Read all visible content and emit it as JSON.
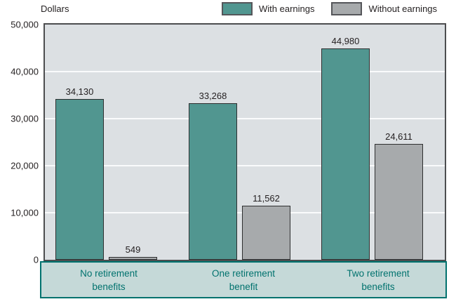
{
  "chart_data": {
    "type": "bar",
    "title": "",
    "ylabel": "Dollars",
    "xlabel": "",
    "ylim": [
      0,
      50000
    ],
    "grid": true,
    "legend_position": "top-right",
    "yticks": [
      {
        "value": 50000,
        "label": "50,000"
      },
      {
        "value": 40000,
        "label": "40,000"
      },
      {
        "value": 30000,
        "label": "30,000"
      },
      {
        "value": 20000,
        "label": "20,000"
      },
      {
        "value": 10000,
        "label": "10,000"
      },
      {
        "value": 0,
        "label": "0"
      }
    ],
    "categories": [
      {
        "lines": [
          "No retirement",
          "benefits"
        ]
      },
      {
        "lines": [
          "One retirement",
          "benefit"
        ]
      },
      {
        "lines": [
          "Two retirement",
          "benefits"
        ]
      }
    ],
    "series": [
      {
        "name": "With earnings",
        "color": "#519690",
        "values": [
          34130,
          33268,
          44980
        ],
        "labels": [
          "34,130",
          "33,268",
          "44,980"
        ]
      },
      {
        "name": "Without earnings",
        "color": "#a7aaac",
        "values": [
          549,
          11562,
          24611
        ],
        "labels": [
          "549",
          "11,562",
          "24,611"
        ]
      }
    ]
  },
  "colors": {
    "plot_background": "#dce0e3",
    "gridline": "#fafbfc",
    "plot_border": "#4c4d4f",
    "bar_border": "#2e2f30",
    "axis_text": "#231f20",
    "category_box_background": "#c5d9d8",
    "category_box_border": "#00726e",
    "category_text": "#00726e"
  }
}
